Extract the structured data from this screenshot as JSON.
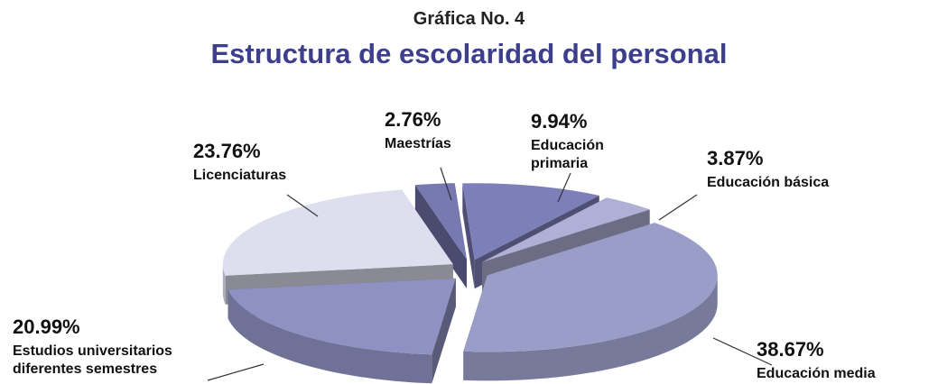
{
  "caption": "Gráfica No. 4",
  "title": "Estructura de escolaridad del personal",
  "colors": {
    "title": "#3d3f8c",
    "slices": [
      "#7d80b8",
      "#aeb0d5",
      "#9a9dc8",
      "#8e91c2",
      "#dddeee",
      "#7779b1"
    ],
    "lines": "#333333"
  },
  "chart_data": {
    "type": "pie",
    "title": "Estructura de escolaridad del personal",
    "slices": [
      {
        "pct_label": "9.94%",
        "value": 9.94,
        "label_lines": [
          "Educación",
          "primaria"
        ]
      },
      {
        "pct_label": "3.87%",
        "value": 3.87,
        "label_lines": [
          "Educación básica"
        ]
      },
      {
        "pct_label": "38.67%",
        "value": 38.67,
        "label_lines": [
          "Educación media"
        ]
      },
      {
        "pct_label": "20.99%",
        "value": 20.99,
        "label_lines": [
          "Estudios universitarios",
          "diferentes semestres"
        ]
      },
      {
        "pct_label": "23.76%",
        "value": 23.76,
        "label_lines": [
          "Licenciaturas"
        ]
      },
      {
        "pct_label": "2.76%",
        "value": 2.76,
        "label_lines": [
          "Maestrías"
        ]
      }
    ]
  }
}
